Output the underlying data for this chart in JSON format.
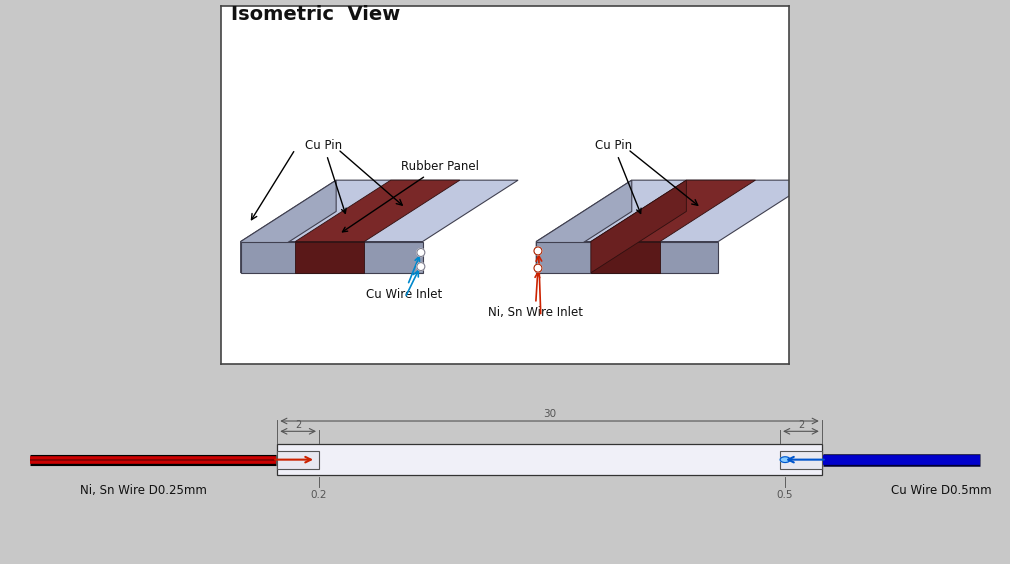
{
  "outer_bg": "#c8c8c8",
  "top_panel_bg": "#ffffff",
  "bottom_panel_bg": "#ffffff",
  "plate_top_color": "#c0c8e0",
  "plate_left_color": "#a0a8c0",
  "plate_front_color": "#9098b0",
  "rubber_top_color": "#7a2828",
  "rubber_front_color": "#5a1818",
  "rubber_left_color": "#6a2020",
  "dim_color": "#555555",
  "anno_color": "#111111",
  "cu_wire_color": "#0000cc",
  "ni_wire_color": "#cc0000",
  "ni_wire_dark": "#880000",
  "wire_inlet_cu_color": "#0088cc",
  "wire_inlet_ni_color": "#cc2200",
  "title": "Isometric  View",
  "title_fontsize": 14,
  "labels": {
    "cu_pin": "Cu Pin",
    "rubber_panel": "Rubber Panel",
    "cu_wire_inlet": "Cu Wire Inlet",
    "ni_wire_inlet": "Ni, Sn Wire Inlet",
    "ni_wire": "Ni, Sn Wire D0.25mm",
    "cu_wire": "Cu Wire D0.5mm"
  },
  "dims": {
    "total": "30",
    "left_inner": "2",
    "right_inner": "2",
    "hole_left": "0.2",
    "hole_right": "0.5"
  }
}
